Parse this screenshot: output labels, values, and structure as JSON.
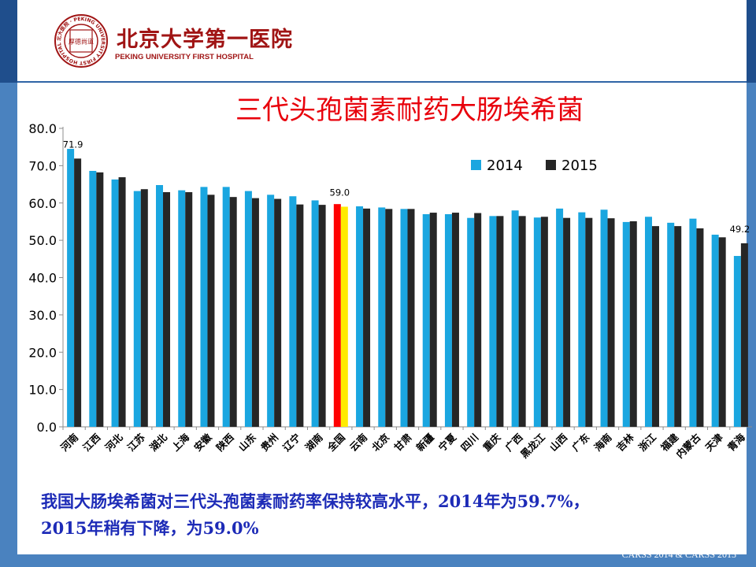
{
  "header": {
    "logo_text_cn": "北京大学第一医院",
    "logo_text_en": "PEKING UNIVERSITY FIRST HOSPITAL",
    "seal_text": "北大医院 · PEKING UNIVERSITY FIRST HOSPITAL · 1915 ·",
    "seal_center": "厚德尚道"
  },
  "colors": {
    "series_2014": "#1aa6e0",
    "series_2015": "#262626",
    "highlight_2014": "#ff0000",
    "highlight_2015": "#ffeb00",
    "title": "#e8000b",
    "caption": "#1d2bb7"
  },
  "chart_data": {
    "type": "bar",
    "title": "三代头孢菌素耐药大肠埃希菌",
    "xlabel": "",
    "ylabel": "",
    "ylim": [
      0,
      80
    ],
    "yticks": [
      "0.0",
      "10.0",
      "20.0",
      "30.0",
      "40.0",
      "50.0",
      "60.0",
      "70.0",
      "80.0"
    ],
    "categories": [
      "河南",
      "江西",
      "河北",
      "江苏",
      "湖北",
      "上海",
      "安徽",
      "陕西",
      "山东",
      "贵州",
      "辽宁",
      "湖南",
      "全国",
      "云南",
      "北京",
      "甘肃",
      "新疆",
      "宁夏",
      "四川",
      "重庆",
      "广西",
      "黑龙江",
      "山西",
      "广东",
      "海南",
      "吉林",
      "浙江",
      "福建",
      "内蒙古",
      "天津",
      "青海"
    ],
    "highlight_category": "全国",
    "series": [
      {
        "name": "2014",
        "values": [
          74.5,
          68.6,
          66.3,
          63.2,
          64.8,
          63.4,
          64.3,
          64.3,
          63.2,
          62.2,
          61.8,
          60.7,
          59.7,
          59.1,
          58.8,
          58.4,
          57.0,
          57.0,
          56.0,
          56.5,
          58.0,
          56.1,
          58.5,
          57.5,
          58.2,
          54.9,
          56.3,
          54.7,
          55.8,
          51.5,
          45.8
        ]
      },
      {
        "name": "2015",
        "values": [
          71.9,
          68.2,
          66.9,
          63.7,
          62.9,
          62.9,
          62.2,
          61.6,
          61.3,
          61.1,
          59.6,
          59.5,
          59.0,
          58.5,
          58.4,
          58.4,
          57.4,
          57.4,
          57.3,
          56.5,
          56.5,
          56.3,
          56.0,
          56.0,
          55.9,
          55.1,
          53.8,
          53.8,
          53.2,
          50.8,
          49.2
        ]
      }
    ],
    "data_labels": [
      {
        "category": "河南",
        "series": "2015",
        "text": "71.9"
      },
      {
        "category": "全国",
        "series": "2015",
        "text": "59.0"
      },
      {
        "category": "青海",
        "series": "2015",
        "text": "49.2"
      }
    ],
    "legend": [
      "2014",
      "2015"
    ],
    "legend_position": "top-right",
    "grid": false
  },
  "caption": {
    "line1": "我国大肠埃希菌对三代头孢菌素耐药率保持较高水平，2014年为59.7%，",
    "line2": "2015年稍有下降，为59.0%"
  },
  "footer": "CARSS 2014 & CARSS 2015"
}
